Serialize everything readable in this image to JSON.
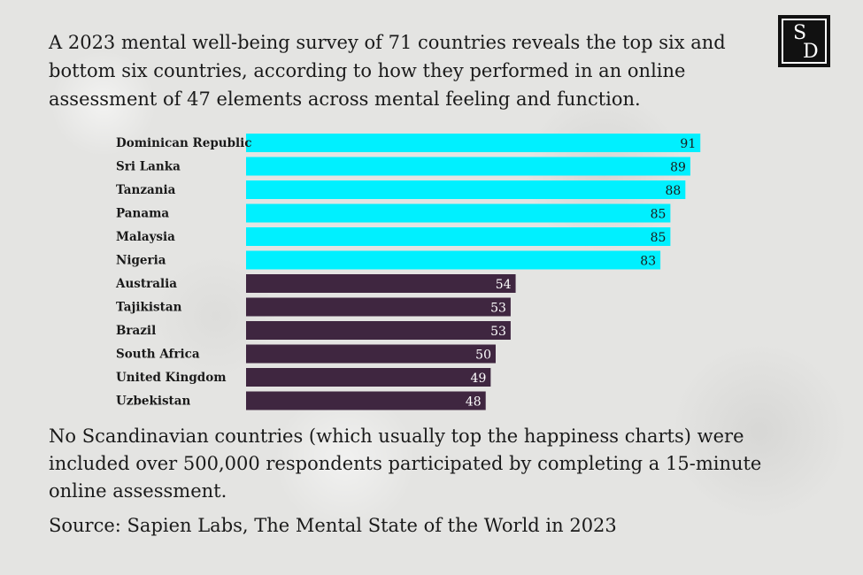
{
  "intro_text": "A 2023 mental well-being survey of 71 countries reveals the top six and bottom six countries, according to how they performed in an online assessment of 47 elements across mental feeling and function.",
  "logo": {
    "line1": "S",
    "line2": "D"
  },
  "chart_data": {
    "type": "bar",
    "orientation": "horizontal",
    "title": "",
    "xlabel": "",
    "ylabel": "",
    "xlim": [
      0,
      100
    ],
    "categories": [
      "Dominican Republic",
      "Sri Lanka",
      "Tanzania",
      "Panama",
      "Malaysia",
      "Nigeria",
      "Australia",
      "Tajikistan",
      "Brazil",
      "South Africa",
      "United Kingdom",
      "Uzbekistan"
    ],
    "values": [
      91,
      89,
      88,
      85,
      85,
      83,
      54,
      53,
      53,
      50,
      49,
      48
    ],
    "groups": [
      "top",
      "top",
      "top",
      "top",
      "top",
      "top",
      "bottom",
      "bottom",
      "bottom",
      "bottom",
      "bottom",
      "bottom"
    ],
    "colors": {
      "top": "#00f0ff",
      "bottom": "#3f2640"
    },
    "label_colors": {
      "top": "#1a1a1a",
      "bottom": "#ffffff"
    }
  },
  "note_text": "No Scandinavian countries (which usually top the happiness charts) were included over 500,000 respondents participated by completing a 15-minute online assessment.",
  "source_text": "Source: Sapien Labs, The Mental State of the World in 2023"
}
